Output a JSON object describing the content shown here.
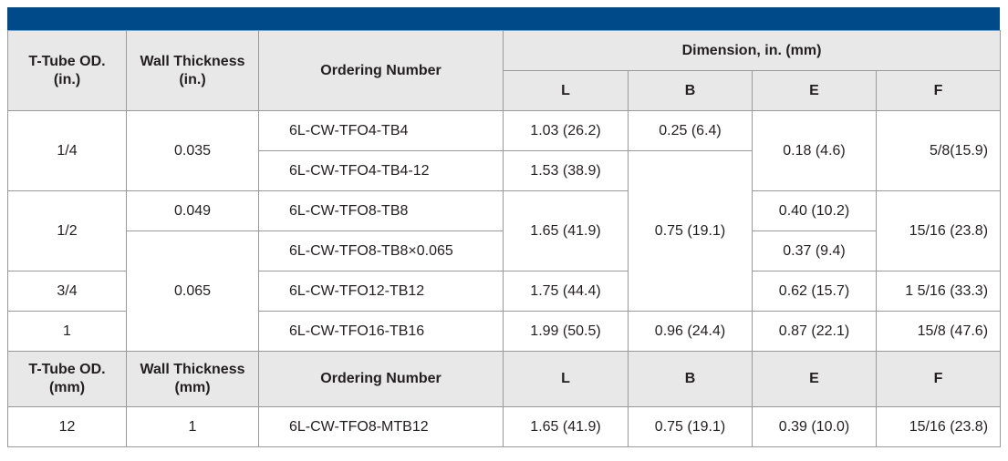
{
  "header_in": {
    "od": [
      "T-Tube OD.",
      "(in.)"
    ],
    "wall": [
      "Wall Thickness",
      "(in.)"
    ],
    "ordering": "Ordering Number",
    "dimension": "Dimension, in. (mm)",
    "dims": [
      "L",
      "B",
      "E",
      "F"
    ]
  },
  "rows": [
    [
      "1/4",
      "0.035",
      "6L-CW-TFO4-TB4",
      "1.03 (26.2)",
      "0.25 (6.4)",
      "0.18 (4.6)",
      "5/8(15.9)"
    ],
    [
      "6L-CW-TFO4-TB4-12",
      "1.53 (38.9)",
      "0.75 (19.1)"
    ],
    [
      "1/2",
      "0.049",
      "6L-CW-TFO8-TB8",
      "1.65 (41.9)",
      "0.40 (10.2)",
      "15/16 (23.8)"
    ],
    [
      "0.065",
      "6L-CW-TFO8-TB8×0.065",
      "0.37 (9.4)"
    ],
    [
      "3/4",
      "6L-CW-TFO12-TB12",
      "1.75 (44.4)",
      "0.62 (15.7)",
      "1 5/16 (33.3)"
    ],
    [
      "1",
      "6L-CW-TFO16-TB16",
      "1.99 (50.5)",
      "0.96 (24.4)",
      "0.87 (22.1)",
      "15/8 (47.6)"
    ]
  ],
  "header_mm": {
    "od": [
      "T-Tube OD.",
      "(mm)"
    ],
    "wall": [
      "Wall Thickness",
      "(mm)"
    ],
    "ordering": "Ordering Number",
    "dims": [
      "L",
      "B",
      "E",
      "F"
    ]
  },
  "metric_rows": [
    [
      "12",
      "1",
      "6L-CW-TFO8-MTB12",
      "1.65 (41.9)",
      "0.75 (19.1)",
      "0.39 (10.0)",
      "15/16 (23.8)"
    ]
  ]
}
